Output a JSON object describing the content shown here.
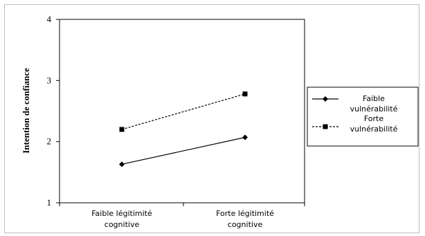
{
  "chart_data": {
    "type": "line",
    "categories": [
      "Faible légitimité cognitive",
      "Forte légitimité cognitive"
    ],
    "category_lines": [
      [
        "Faible légitimité",
        "cognitive"
      ],
      [
        "Forte légitimité",
        "cognitive"
      ]
    ],
    "ylabel": "Intention de confiance",
    "xlabel": "",
    "title": "",
    "ylim": [
      1,
      4
    ],
    "yticks": [
      1,
      2,
      3,
      4
    ],
    "grid": false,
    "legend_position": "right",
    "series": [
      {
        "name": "Faible vulnérabilité",
        "name_lines": [
          "Faible",
          "vulnérabilité"
        ],
        "values": [
          1.63,
          2.07
        ],
        "marker": "diamond",
        "line_style": "solid",
        "color": "#000000"
      },
      {
        "name": "Forte vulnérabilité",
        "name_lines": [
          "Forte",
          "vulnérabilité"
        ],
        "values": [
          2.2,
          2.78
        ],
        "marker": "square",
        "line_style": "dashed",
        "color": "#000000"
      }
    ]
  }
}
